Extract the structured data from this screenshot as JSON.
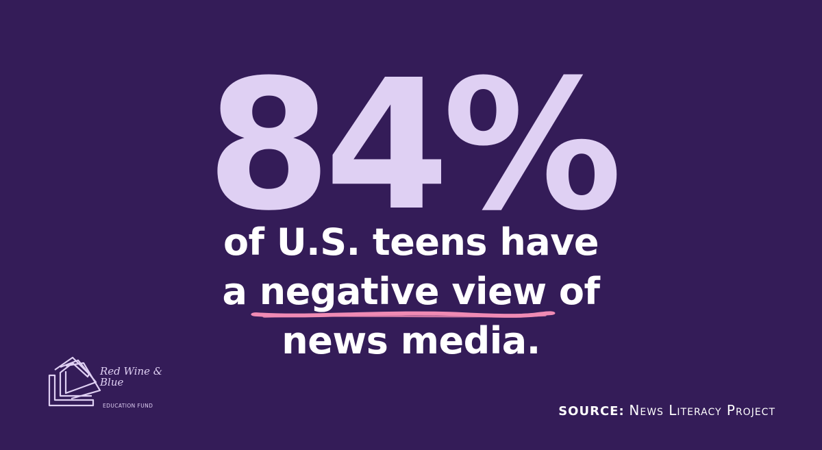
{
  "statistic": {
    "value": "84%"
  },
  "headline": {
    "line1": "of U.S. teens have",
    "line2_pre": "a ",
    "line2_highlight": "negative view",
    "line2_post": " of",
    "line3": "news media."
  },
  "source": {
    "label": "SOURCE:",
    "value": "News Literacy Project"
  },
  "logo": {
    "name": "Red Wine & Blue",
    "subtitle": "EDUCATION FUND",
    "icon": "book-pages-icon"
  },
  "colors": {
    "background": "#341c58",
    "statistic": "#dfd0f3",
    "headline": "#ffffff",
    "underline": "#f08bb4"
  }
}
